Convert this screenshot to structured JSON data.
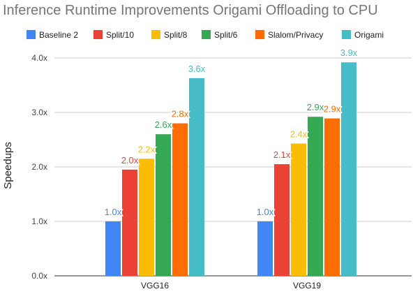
{
  "chart_data": {
    "type": "bar",
    "title": "Inference Runtime Improvements Origami Offloading to CPU",
    "ylabel": "Speedups",
    "xlabel": "",
    "ylim": [
      0,
      4
    ],
    "yticks": [
      "0.0x",
      "1.0x",
      "2.0x",
      "3.0x",
      "4.0x"
    ],
    "grid": true,
    "legend_position": "top",
    "categories": [
      "VGG16",
      "VGG19"
    ],
    "series": [
      {
        "name": "Baseline 2",
        "color": "#4285F4",
        "values": [
          1.0,
          1.0
        ],
        "labels": [
          "1.0x",
          "1.0x"
        ]
      },
      {
        "name": "Split/10",
        "color": "#EA4335",
        "values": [
          1.95,
          2.05
        ],
        "labels": [
          "2.0x",
          "2.1x"
        ]
      },
      {
        "name": "Split/8",
        "color": "#FBBC04",
        "values": [
          2.15,
          2.43
        ],
        "labels": [
          "2.2x",
          "2.4x"
        ]
      },
      {
        "name": "Split/6",
        "color": "#34A853",
        "values": [
          2.6,
          2.92
        ],
        "labels": [
          "2.6x",
          "2.9x"
        ]
      },
      {
        "name": "Slalom/Privacy",
        "color": "#FF6D01",
        "values": [
          2.8,
          2.89
        ],
        "labels": [
          "2.8x",
          "2.9x"
        ]
      },
      {
        "name": "Origami",
        "color": "#46BDC6",
        "values": [
          3.63,
          3.92
        ],
        "labels": [
          "3.6x",
          "3.9x"
        ]
      }
    ]
  }
}
